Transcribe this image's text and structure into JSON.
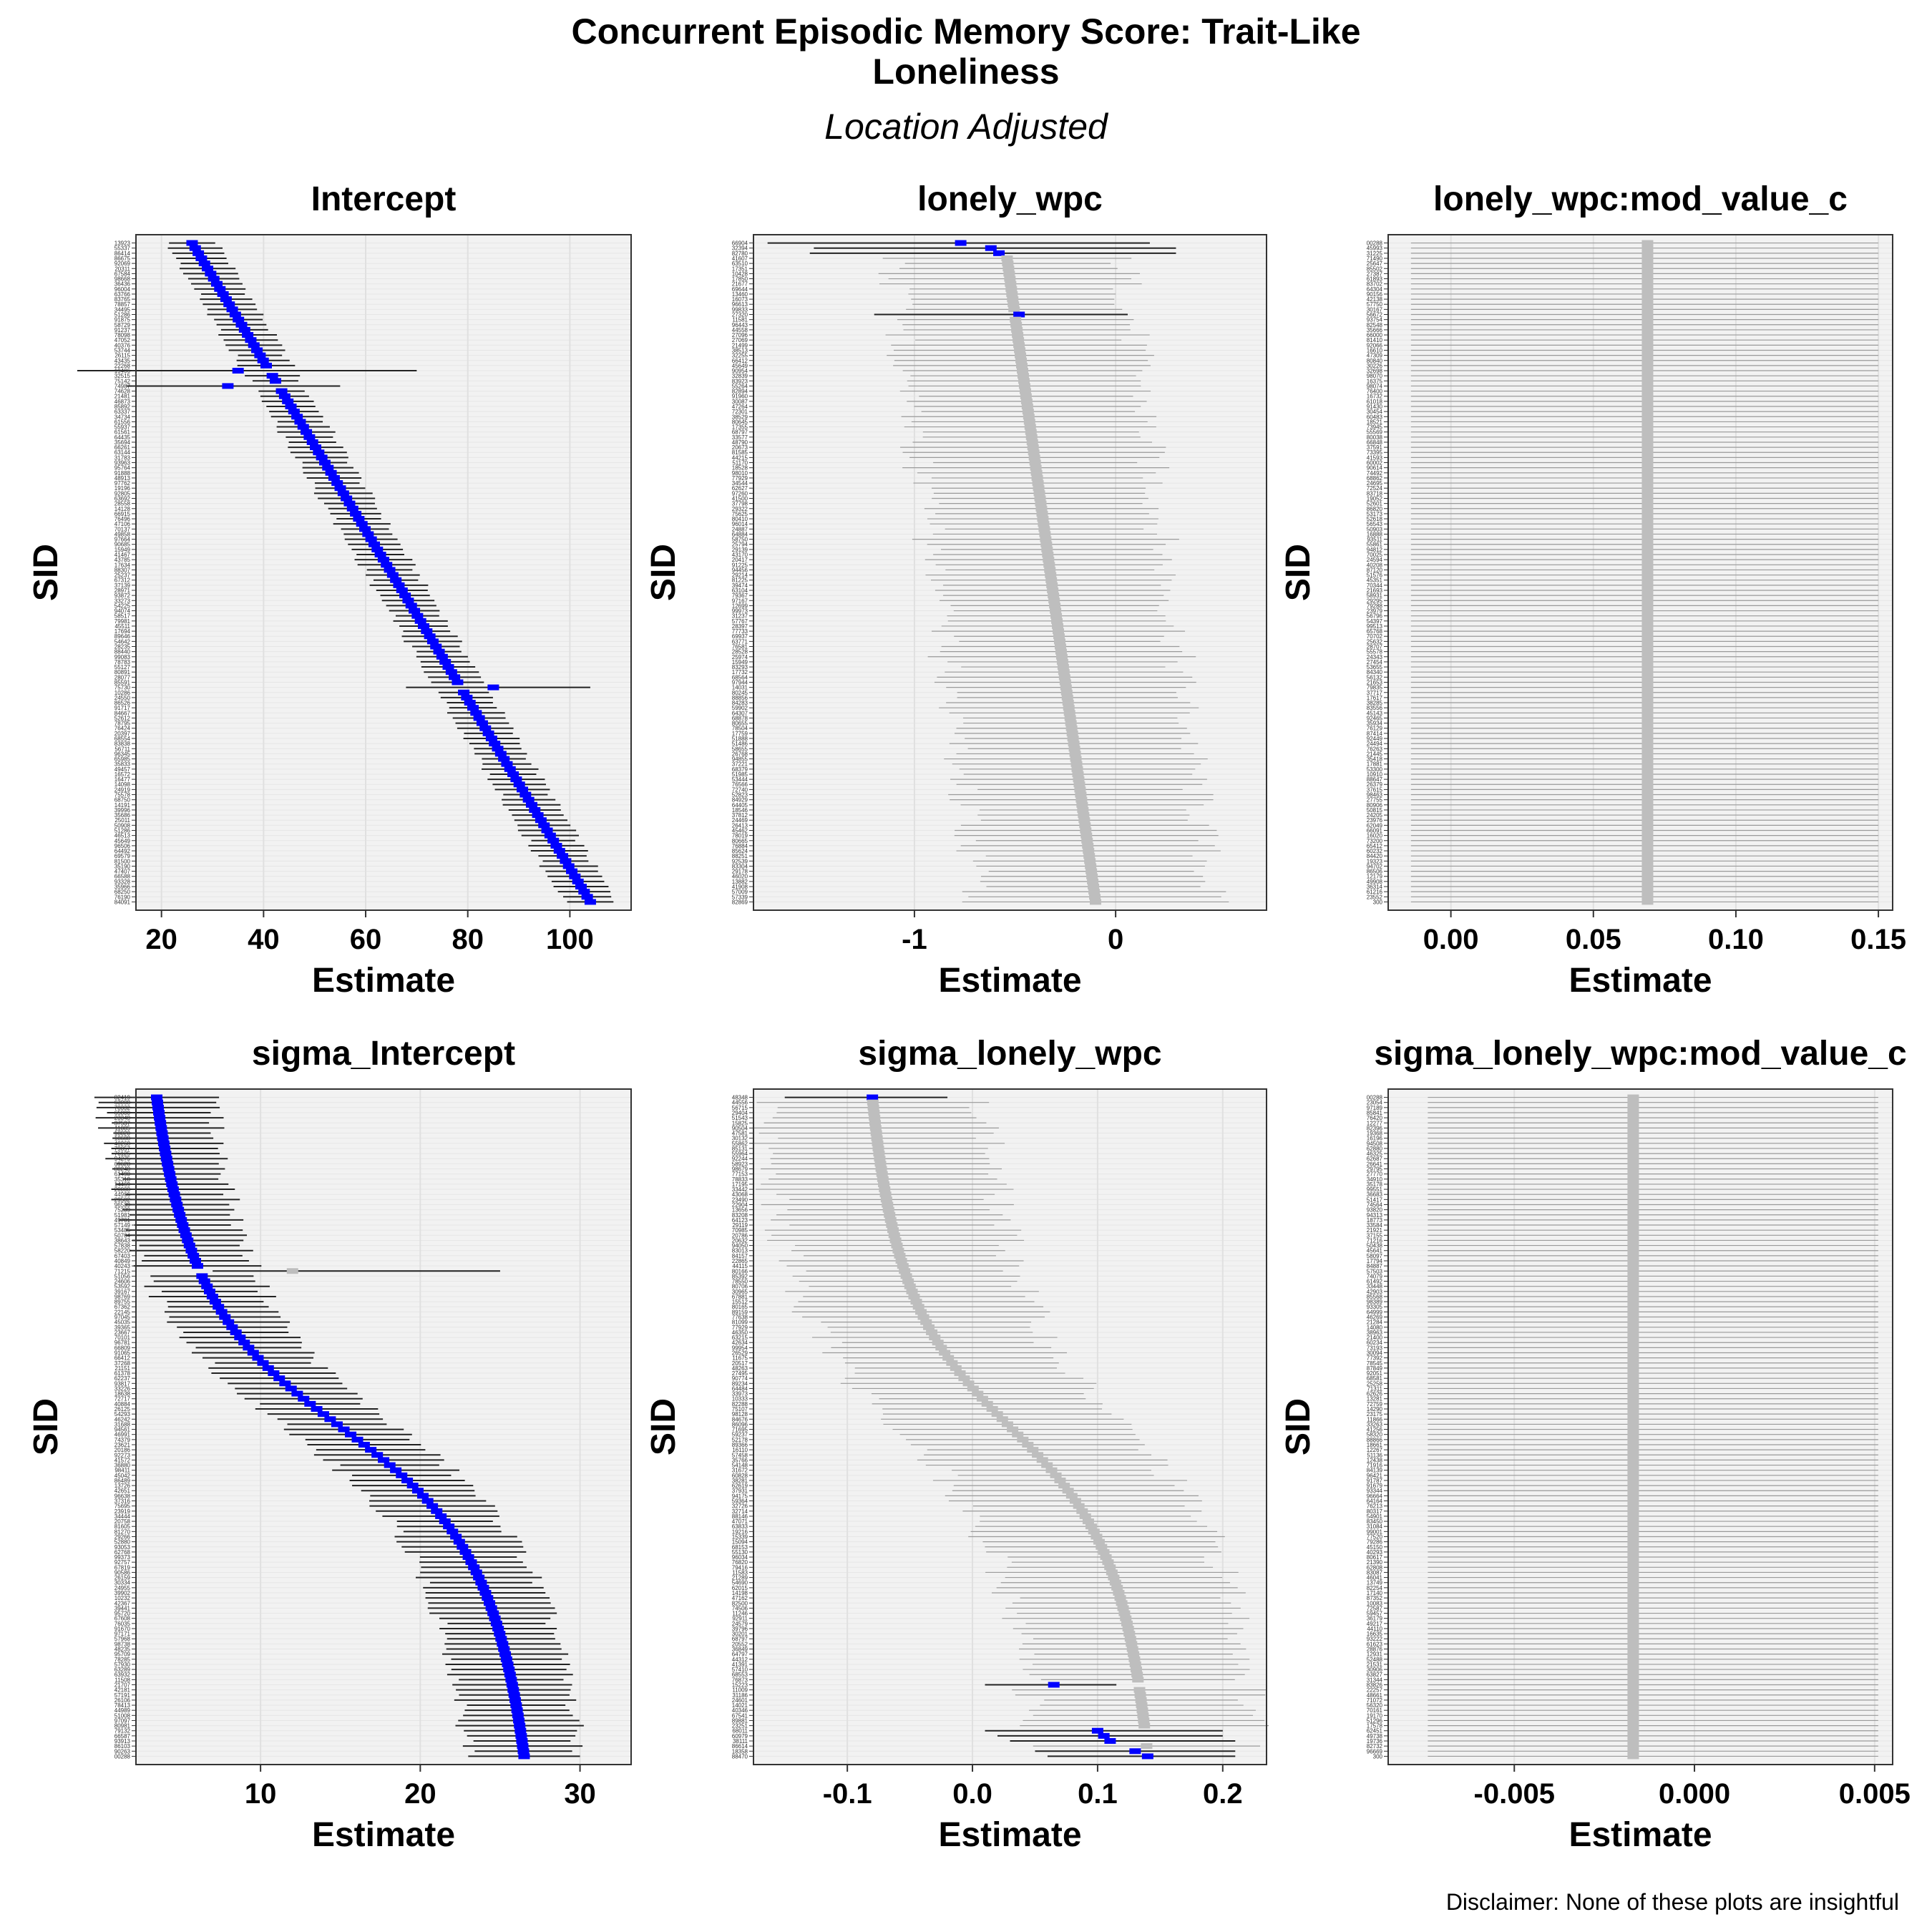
{
  "title_line1": "Concurrent Episodic Memory Score: Trait-Like",
  "title_line2": "Loneliness",
  "subtitle": "Location Adjusted",
  "disclaimer": "Disclaimer: None of these plots are insightful",
  "colors": {
    "highlight": "#0000FF",
    "normal": "#BEBEBE",
    "panel_bg": "#F2F2F2",
    "interval": "#333333"
  },
  "chart_data": [
    {
      "type": "forest",
      "title": "Intercept",
      "xlabel": "Estimate",
      "ylabel": "SID",
      "xlim": [
        15,
        112
      ],
      "xticks": [
        20,
        40,
        60,
        80,
        100
      ],
      "xtick_labels": [
        "20",
        "40",
        "60",
        "80",
        "100"
      ],
      "n_subjects": 130,
      "estimate_range": [
        26,
        104
      ],
      "shape": "linear",
      "interval_halfwidth": 5,
      "highlight": "all",
      "first_label": "13923",
      "last_label": "84091",
      "outliers": [
        [
          25,
          35,
          70
        ],
        [
          28,
          33,
          55
        ],
        [
          87,
          85,
          104
        ]
      ]
    },
    {
      "type": "forest",
      "title": "lonely_wpc",
      "xlabel": "Estimate",
      "ylabel": "SID",
      "xlim": [
        -1.8,
        0.75
      ],
      "xticks": [
        -1,
        0
      ],
      "xtick_labels": [
        "-1",
        "0"
      ],
      "n_subjects": 130,
      "estimate_range": [
        -0.55,
        -0.1
      ],
      "shape": "linear",
      "interval_halfwidth": 0.58,
      "highlight": "none",
      "first_label": "66904",
      "last_label": "82869",
      "extreme_points": [
        [
          0,
          -0.77,
          -1.73,
          0.17,
          true
        ],
        [
          1,
          -0.62,
          -1.5,
          0.3,
          true
        ],
        [
          2,
          -0.58,
          -1.52,
          0.3,
          true
        ],
        [
          14,
          -0.48,
          -1.2,
          0.06,
          true
        ]
      ]
    },
    {
      "type": "forest",
      "title": "lonely_wpc:mod_value_c",
      "xlabel": "Estimate",
      "ylabel": "SID",
      "xlim": [
        -0.022,
        0.155
      ],
      "xticks": [
        0.0,
        0.05,
        0.1,
        0.15
      ],
      "xtick_labels": [
        "0.00",
        "0.05",
        "0.10",
        "0.15"
      ],
      "n_subjects": 130,
      "estimate_range": [
        0.069,
        0.069
      ],
      "shape": "constant",
      "interval": [
        -0.014,
        0.15
      ],
      "highlight": "none",
      "first_label": "00288",
      "last_label": "300"
    },
    {
      "type": "forest",
      "title": "sigma_Intercept",
      "xlabel": "Estimate",
      "ylabel": "SID",
      "xlim": [
        2.2,
        33.2
      ],
      "xticks": [
        10,
        20,
        30
      ],
      "xtick_labels": [
        "10",
        "20",
        "30"
      ],
      "n_subjects": 130,
      "estimate_range": [
        3.5,
        26.5
      ],
      "shape": "sigmoid",
      "interval_halfwidth": 3.5,
      "highlight": "all",
      "first_label": "82419",
      "last_label": "00288",
      "extreme_points": [
        [
          34,
          12,
          7,
          25,
          false
        ]
      ]
    },
    {
      "type": "forest",
      "title": "sigma_lonely_wpc",
      "xlabel": "Estimate",
      "ylabel": "SID",
      "xlim": [
        -0.175,
        0.235
      ],
      "xticks": [
        -0.1,
        0.0,
        0.1,
        0.2
      ],
      "xtick_labels": [
        "-0.1",
        "0.0",
        "0.1",
        "0.2"
      ],
      "n_subjects": 130,
      "estimate_range": [
        -0.08,
        0.14
      ],
      "shape": "sigmoid",
      "interval_halfwidth": 0.09,
      "highlight": "partial",
      "first_label": "48348",
      "last_label": "88470",
      "extreme_points": [
        [
          0,
          -0.08,
          -0.15,
          -0.02,
          true
        ],
        [
          115,
          0.065,
          0.01,
          0.115,
          true
        ],
        [
          124,
          0.1,
          0.01,
          0.2,
          true
        ],
        [
          125,
          0.105,
          0.02,
          0.2,
          true
        ],
        [
          126,
          0.11,
          0.03,
          0.21,
          true
        ],
        [
          128,
          0.13,
          0.05,
          0.21,
          true
        ],
        [
          129,
          0.14,
          0.06,
          0.21,
          true
        ]
      ]
    },
    {
      "type": "forest",
      "title": "sigma_lonely_wpc:mod_value_c",
      "xlabel": "Estimate",
      "ylabel": "SID",
      "xlim": [
        -0.0085,
        0.0055
      ],
      "xticks": [
        -0.005,
        0.0,
        0.005
      ],
      "xtick_labels": [
        "-0.005",
        "0.000",
        "0.005"
      ],
      "n_subjects": 130,
      "estimate_range": [
        -0.0017,
        -0.0017
      ],
      "shape": "constant",
      "interval": [
        -0.0074,
        0.0051
      ],
      "highlight": "none",
      "first_label": "00288",
      "last_label": "300"
    }
  ]
}
